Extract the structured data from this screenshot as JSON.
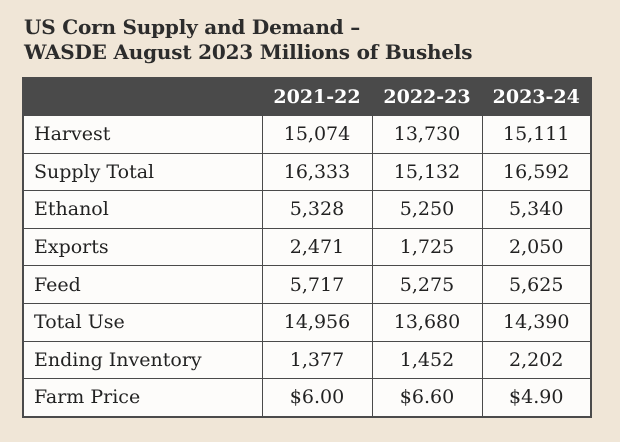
{
  "chart_data": {
    "type": "table",
    "title_lines": [
      "US Corn Supply and Demand –",
      "WASDE August 2023 Millions of Bushels"
    ],
    "columns": [
      "",
      "2021-22",
      "2022-23",
      "2023-24"
    ],
    "rows": [
      {
        "label": "Harvest",
        "values": [
          "15,074",
          "13,730",
          "15,111"
        ]
      },
      {
        "label": "Supply Total",
        "values": [
          "16,333",
          "15,132",
          "16,592"
        ]
      },
      {
        "label": "Ethanol",
        "values": [
          "5,328",
          "5,250",
          "5,340"
        ]
      },
      {
        "label": "Exports",
        "values": [
          "2,471",
          "1,725",
          "2,050"
        ]
      },
      {
        "label": "Feed",
        "values": [
          "5,717",
          "5,275",
          "5,625"
        ]
      },
      {
        "label": "Total Use",
        "values": [
          "14,956",
          "13,680",
          "14,390"
        ]
      },
      {
        "label": "Ending Inventory",
        "values": [
          "1,377",
          "1,452",
          "2,202"
        ]
      },
      {
        "label": "Farm Price",
        "values": [
          "$6.00",
          "$6.60",
          "$4.90"
        ]
      }
    ]
  },
  "colors": {
    "background": "#f0e6d7",
    "header_bg": "#4a4a4a",
    "header_text": "#ffffff",
    "cell_bg": "#fdfcfa",
    "border": "#4a4a4a",
    "text": "#222222"
  }
}
